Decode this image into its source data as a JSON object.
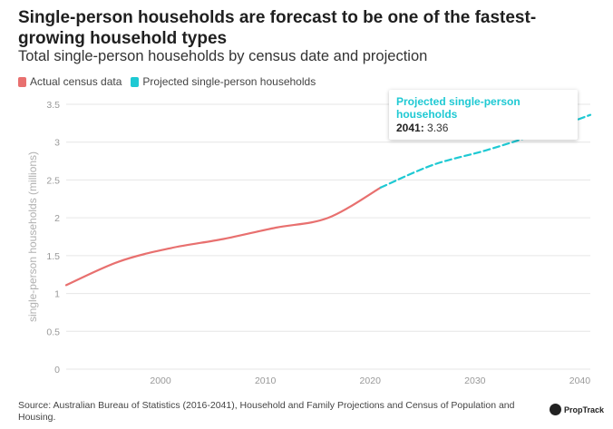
{
  "header": {
    "title": "Single-person households are forecast to be one of the fastest-growing household types",
    "subtitle": "Total single-person households by census date and projection"
  },
  "legend": {
    "actual": "Actual census data",
    "projected": "Projected single-person households"
  },
  "tooltip": {
    "title": "Projected single-person households",
    "year": "2041:",
    "value": "3.36"
  },
  "colors": {
    "actual": "#e8706f",
    "projected": "#1ec9d3",
    "grid": "#e6e6e6",
    "tick": "#999999"
  },
  "footer": {
    "source": "Source: Australian Bureau of Statistics (2016-2041), Household and Family Projections and Census of Population and Housing.",
    "brand": "PropTrack"
  },
  "chart_data": {
    "type": "line",
    "title": "Total single-person households by census date and projection",
    "xlabel": "",
    "ylabel": "single-person households (millions)",
    "xlim": [
      1991,
      2041
    ],
    "ylim": [
      0,
      3.5
    ],
    "xticks": [
      2000,
      2010,
      2020,
      2030,
      2040
    ],
    "yticks": [
      0,
      0.5,
      1,
      1.5,
      2,
      2.5,
      3,
      3.5
    ],
    "ytick_labels": [
      "0",
      "0.5",
      "1",
      "1.5",
      "2",
      "2.5",
      "3",
      "3.5"
    ],
    "series": [
      {
        "name": "Actual census data",
        "style": "solid",
        "x": [
          1991,
          1996,
          2001,
          2006,
          2011,
          2016,
          2021
        ],
        "values": [
          1.11,
          1.42,
          1.6,
          1.72,
          1.87,
          2.0,
          2.4
        ]
      },
      {
        "name": "Projected single-person households",
        "style": "dashed",
        "x": [
          2021,
          2026,
          2031,
          2036,
          2041
        ],
        "values": [
          2.4,
          2.7,
          2.89,
          3.11,
          3.36
        ]
      }
    ]
  }
}
